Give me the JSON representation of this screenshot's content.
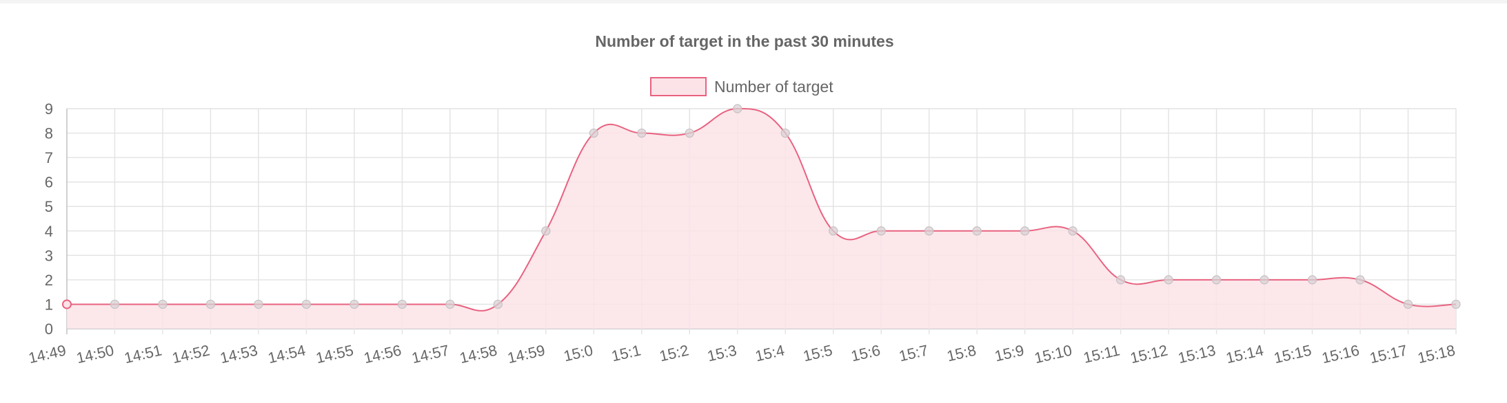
{
  "chart_data": {
    "type": "line",
    "title": "Number of target in the past 30 minutes",
    "xlabel": "",
    "ylabel": "",
    "categories": [
      "14:49",
      "14:50",
      "14:51",
      "14:52",
      "14:53",
      "14:54",
      "14:55",
      "14:56",
      "14:57",
      "14:58",
      "14:59",
      "15:0",
      "15:1",
      "15:2",
      "15:3",
      "15:4",
      "15:5",
      "15:6",
      "15:7",
      "15:8",
      "15:9",
      "15:10",
      "15:11",
      "15:12",
      "15:13",
      "15:14",
      "15:15",
      "15:16",
      "15:17",
      "15:18"
    ],
    "series": [
      {
        "name": "Number of target",
        "values": [
          1,
          1,
          1,
          1,
          1,
          1,
          1,
          1,
          1,
          1,
          4,
          8,
          8,
          8,
          9,
          8,
          4,
          4,
          4,
          4,
          4,
          4,
          2,
          2,
          2,
          2,
          2,
          2,
          1,
          1
        ],
        "line_color": "#e8627f",
        "fill_color": "#fbe3e8"
      }
    ],
    "ylim": [
      0,
      9
    ],
    "yticks": [
      0,
      1,
      2,
      3,
      4,
      5,
      6,
      7,
      8,
      9
    ],
    "grid": true,
    "legend": "top-center",
    "area_fill": true,
    "smooth": true
  }
}
